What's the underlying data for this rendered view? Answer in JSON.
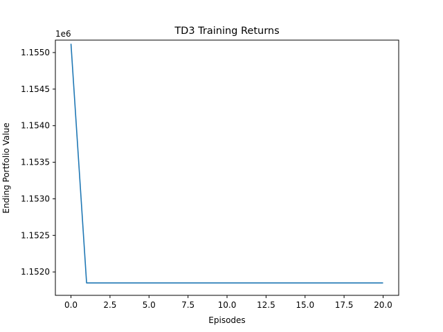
{
  "chart_data": {
    "type": "line",
    "title": "TD3 Training Returns",
    "xlabel": "Episodes",
    "ylabel": "Ending Portfolio Value",
    "y_offset_label": "1e6",
    "xlim": [
      -1.0,
      21.0
    ],
    "ylim": [
      1.15168,
      1.15517
    ],
    "x_ticks": [
      0.0,
      2.5,
      5.0,
      7.5,
      10.0,
      12.5,
      15.0,
      17.5,
      20.0
    ],
    "x_tick_labels": [
      "0.0",
      "2.5",
      "5.0",
      "7.5",
      "10.0",
      "12.5",
      "15.0",
      "17.5",
      "20.0"
    ],
    "y_ticks": [
      1.152,
      1.1525,
      1.153,
      1.1535,
      1.154,
      1.1545,
      1.155
    ],
    "y_tick_labels": [
      "1.1520",
      "1.1525",
      "1.1530",
      "1.1535",
      "1.1540",
      "1.1545",
      "1.1550"
    ],
    "grid": false,
    "legend": "none",
    "series": [
      {
        "color": "#1f77b4",
        "x": [
          0,
          1,
          2,
          3,
          4,
          5,
          6,
          7,
          8,
          9,
          10,
          11,
          12,
          13,
          14,
          15,
          16,
          17,
          18,
          19,
          20
        ],
        "values": [
          1.15512,
          1.15185,
          1.15185,
          1.15185,
          1.15185,
          1.15185,
          1.15185,
          1.15185,
          1.15185,
          1.15185,
          1.15185,
          1.15185,
          1.15185,
          1.15185,
          1.15185,
          1.15185,
          1.15185,
          1.15185,
          1.15185,
          1.15185,
          1.15185
        ]
      }
    ]
  }
}
